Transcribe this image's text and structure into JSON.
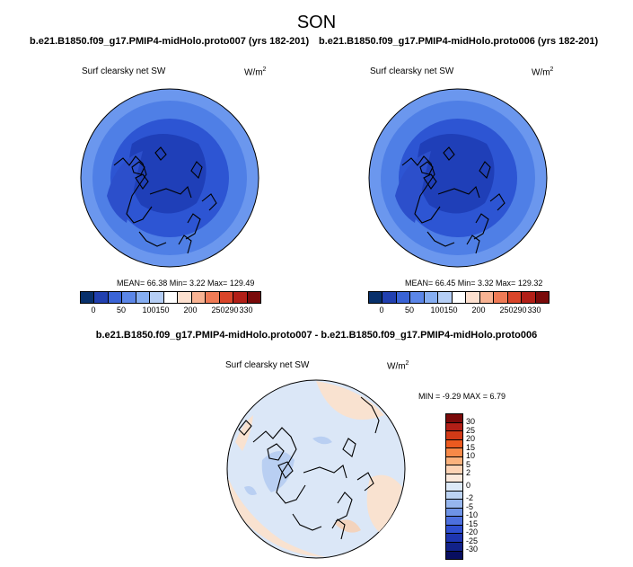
{
  "figure_title": "SON",
  "panels": {
    "left": {
      "case": "b.e21.B1850.f09_g17.PMIP4-midHolo.proto007 (yrs 182-201)",
      "variable": "Surf clearsky net SW",
      "unit": "W/m",
      "unit_exp": "2",
      "stats": "MEAN=  66.38  Min=    3.22  Max= 129.49"
    },
    "right": {
      "case": "b.e21.B1850.f09_g17.PMIP4-midHolo.proto006 (yrs 182-201)",
      "variable": "Surf clearsky net SW",
      "unit": "W/m",
      "unit_exp": "2",
      "stats": "MEAN=  66.45  Min=    3.32  Max= 129.32"
    },
    "diff": {
      "title": "b.e21.B1850.f09_g17.PMIP4-midHolo.proto007 - b.e21.B1850.f09_g17.PMIP4-midHolo.proto006",
      "variable": "Surf clearsky net SW",
      "unit": "W/m",
      "unit_exp": "2",
      "stats": "MIN =  -9.29 MAX =   6.79"
    }
  },
  "colorbar_abs": {
    "colors": [
      "#08306b",
      "#2140b0",
      "#3a64d6",
      "#5b86e8",
      "#86aef2",
      "#b5cef5",
      "#ffffff",
      "#fde0cf",
      "#f8b393",
      "#ef7b56",
      "#d9452a",
      "#b21f17",
      "#7a0a0a"
    ],
    "labels": [
      "0",
      "50",
      "100",
      "150",
      "200",
      "250",
      "290",
      "330"
    ]
  },
  "colorbar_diff": {
    "colors": [
      "#7a0a0a",
      "#b21f17",
      "#d23a17",
      "#ec5a1f",
      "#f78948",
      "#fbb27d",
      "#fdd3b5",
      "#fbe9dc",
      "#dce9f8",
      "#bcd3f3",
      "#96b6ee",
      "#6e93e6",
      "#4d70de",
      "#2f4fd0",
      "#1e35b0",
      "#12228a",
      "#080e60"
    ],
    "labels": [
      "30",
      "25",
      "20",
      "15",
      "10",
      "5",
      "2",
      "0",
      "-2",
      "-5",
      "-10",
      "-15",
      "-20",
      "-25",
      "-30"
    ]
  },
  "map_colors": {
    "inner": "#1f3fb8",
    "mid": "#2d55d3",
    "outer": "#4f7fe6",
    "rim": "#6b97ee",
    "diff_bg": "#dbe7f7",
    "diff_warm": "#f9e2d0",
    "diff_cool": "#b9cff2"
  }
}
